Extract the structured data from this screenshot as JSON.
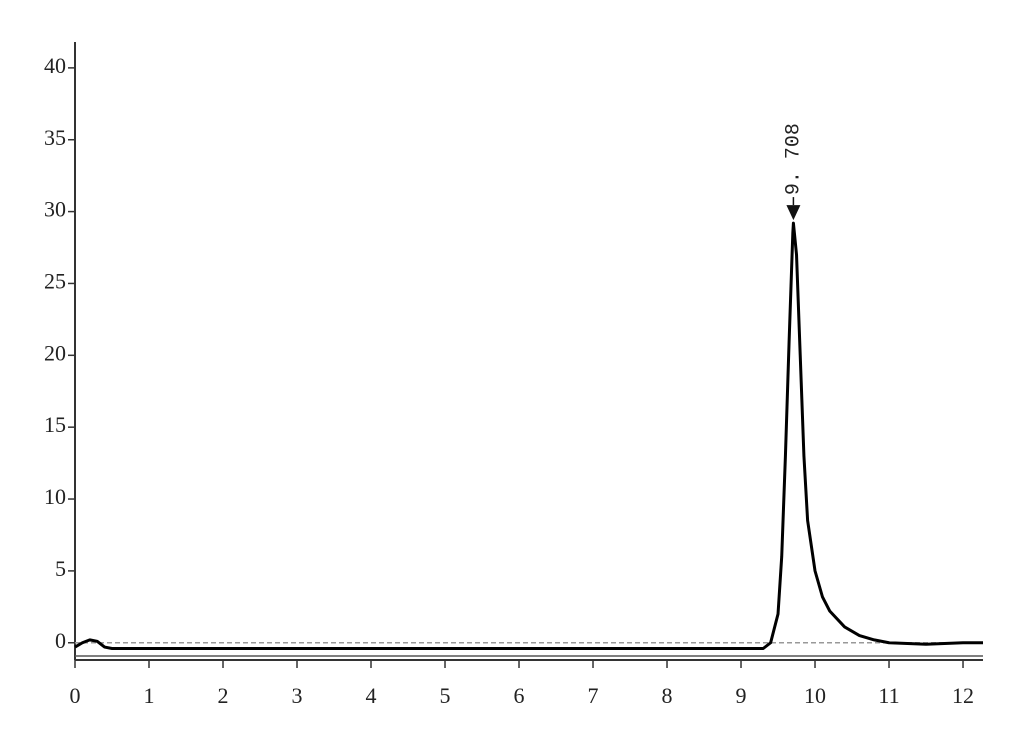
{
  "chart_data": {
    "type": "line",
    "series": [
      {
        "color": "#000000",
        "x": [
          0,
          0.1,
          0.2,
          0.3,
          0.4,
          0.5,
          1,
          2,
          3,
          4,
          5,
          6,
          7,
          8,
          9,
          9.3,
          9.4,
          9.5,
          9.55,
          9.6,
          9.65,
          9.7,
          9.708,
          9.75,
          9.8,
          9.85,
          9.9,
          10.0,
          10.1,
          10.2,
          10.4,
          10.6,
          10.8,
          11.0,
          11.5,
          12.0,
          12.27
        ],
        "values": [
          -0.3,
          0,
          0.2,
          0.1,
          -0.3,
          -0.4,
          -0.4,
          -0.4,
          -0.4,
          -0.4,
          -0.4,
          -0.4,
          -0.4,
          -0.4,
          -0.4,
          -0.4,
          0,
          2,
          6,
          13,
          21,
          28.5,
          29.2,
          27,
          20,
          13,
          8.5,
          5,
          3.2,
          2.2,
          1.1,
          0.5,
          0.2,
          0,
          -0.1,
          0,
          0
        ]
      }
    ],
    "annotations": [
      {
        "text": "9. 708",
        "x": 9.708,
        "y": 29.2
      }
    ],
    "xlim": [
      0,
      12.27
    ],
    "xticks": [
      0,
      1,
      2,
      3,
      4,
      5,
      6,
      7,
      8,
      9,
      10,
      11,
      12
    ],
    "ylim": [
      -1.2,
      41.8
    ],
    "yticks": [
      0,
      5,
      10,
      15,
      20,
      25,
      30,
      35,
      40
    ]
  }
}
